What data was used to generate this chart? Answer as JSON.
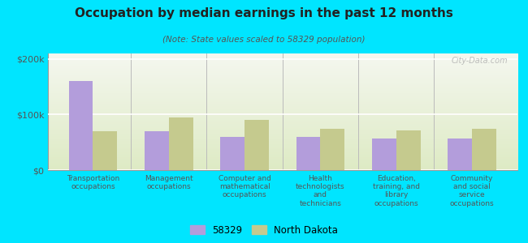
{
  "title": "Occupation by median earnings in the past 12 months",
  "subtitle": "(Note: State values scaled to 58329 population)",
  "categories": [
    "Transportation\noccupations",
    "Management\noccupations",
    "Computer and\nmathematical\noccupations",
    "Health\ntechnologists\nand\ntechnicians",
    "Education,\ntraining, and\nlibrary\noccupations",
    "Community\nand social\nservice\noccupations"
  ],
  "values_58329": [
    160000,
    70000,
    60000,
    60000,
    57000,
    57000
  ],
  "values_nd": [
    70000,
    95000,
    90000,
    75000,
    72000,
    75000
  ],
  "color_58329": "#b39ddb",
  "color_nd": "#c5ca8e",
  "background_outer": "#00e5ff",
  "background_plot_top": "#f5f5ee",
  "background_plot_bottom": "#dde8c0",
  "ylim": [
    0,
    210000
  ],
  "yticks": [
    0,
    100000,
    200000
  ],
  "ytick_labels": [
    "$0",
    "$100k",
    "$200k"
  ],
  "legend_58329": "58329",
  "legend_nd": "North Dakota",
  "bar_width": 0.32,
  "watermark": "City-Data.com"
}
